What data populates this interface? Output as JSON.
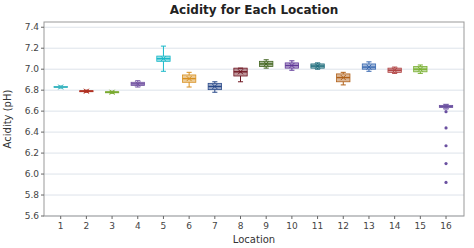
{
  "chart_data": {
    "type": "box",
    "title": "Acidity for Each Location",
    "x_label": "Location",
    "y_label": "Acidity (pH)",
    "x": [
      1,
      2,
      3,
      4,
      5,
      6,
      7,
      8,
      9,
      10,
      11,
      12,
      13,
      14,
      15,
      16
    ],
    "xlim": [
      0.35,
      16.7
    ],
    "xticks": [
      1,
      2,
      3,
      4,
      5,
      6,
      7,
      8,
      9,
      10,
      11,
      12,
      13,
      14,
      15,
      16
    ],
    "ylim": [
      5.6,
      7.45
    ],
    "yticks": [
      5.6,
      5.8,
      {
        "value": 6.0,
        "label": "6.0"
      },
      6.2,
      6.4,
      6.6,
      6.8,
      {
        "value": 7.0,
        "label": "7.0"
      },
      7.2,
      7.4
    ],
    "q1": [
      6.825,
      6.785,
      6.775,
      6.845,
      7.075,
      6.875,
      6.805,
      6.935,
      7.025,
      7.01,
      7.01,
      6.88,
      7.0,
      6.97,
      6.975,
      6.635
    ],
    "median": [
      6.83,
      6.79,
      6.78,
      6.86,
      7.1,
      6.91,
      6.835,
      6.975,
      7.05,
      7.035,
      7.03,
      6.92,
      7.02,
      6.99,
      7.0,
      6.645
    ],
    "q3": [
      6.835,
      6.795,
      6.785,
      6.875,
      7.125,
      6.945,
      6.865,
      7.01,
      7.075,
      7.06,
      7.05,
      6.955,
      7.05,
      7.01,
      7.025,
      6.655
    ],
    "whislo": [
      6.82,
      6.78,
      6.77,
      6.83,
      6.98,
      6.83,
      6.78,
      6.88,
      7.01,
      6.99,
      7.0,
      6.85,
      6.98,
      6.96,
      6.96,
      6.62
    ],
    "whishi": [
      6.84,
      6.8,
      6.79,
      6.89,
      7.22,
      6.97,
      6.88,
      7.01,
      7.09,
      7.08,
      7.06,
      6.97,
      7.07,
      7.02,
      7.04,
      6.665
    ],
    "mean": [
      6.83,
      6.79,
      6.78,
      6.86,
      7.1,
      6.91,
      6.835,
      6.975,
      7.05,
      7.035,
      7.03,
      6.92,
      7.02,
      6.99,
      7.0,
      6.645
    ],
    "fliers": [
      [],
      [],
      [],
      [],
      [],
      [],
      [],
      [],
      [],
      [],
      [],
      [],
      [],
      [],
      [],
      [
        6.595,
        6.44,
        6.27,
        6.1,
        5.92
      ]
    ],
    "colors": [
      "#3ab5c0",
      "#b03020",
      "#7aaa30",
      "#7050a0",
      "#18b8c8",
      "#d89020",
      "#284888",
      "#6e1520",
      "#426520",
      "#603898",
      "#186878",
      "#b06018",
      "#3868b0",
      "#b04040",
      "#78b030",
      "#6a50a0"
    ],
    "grid": true
  }
}
